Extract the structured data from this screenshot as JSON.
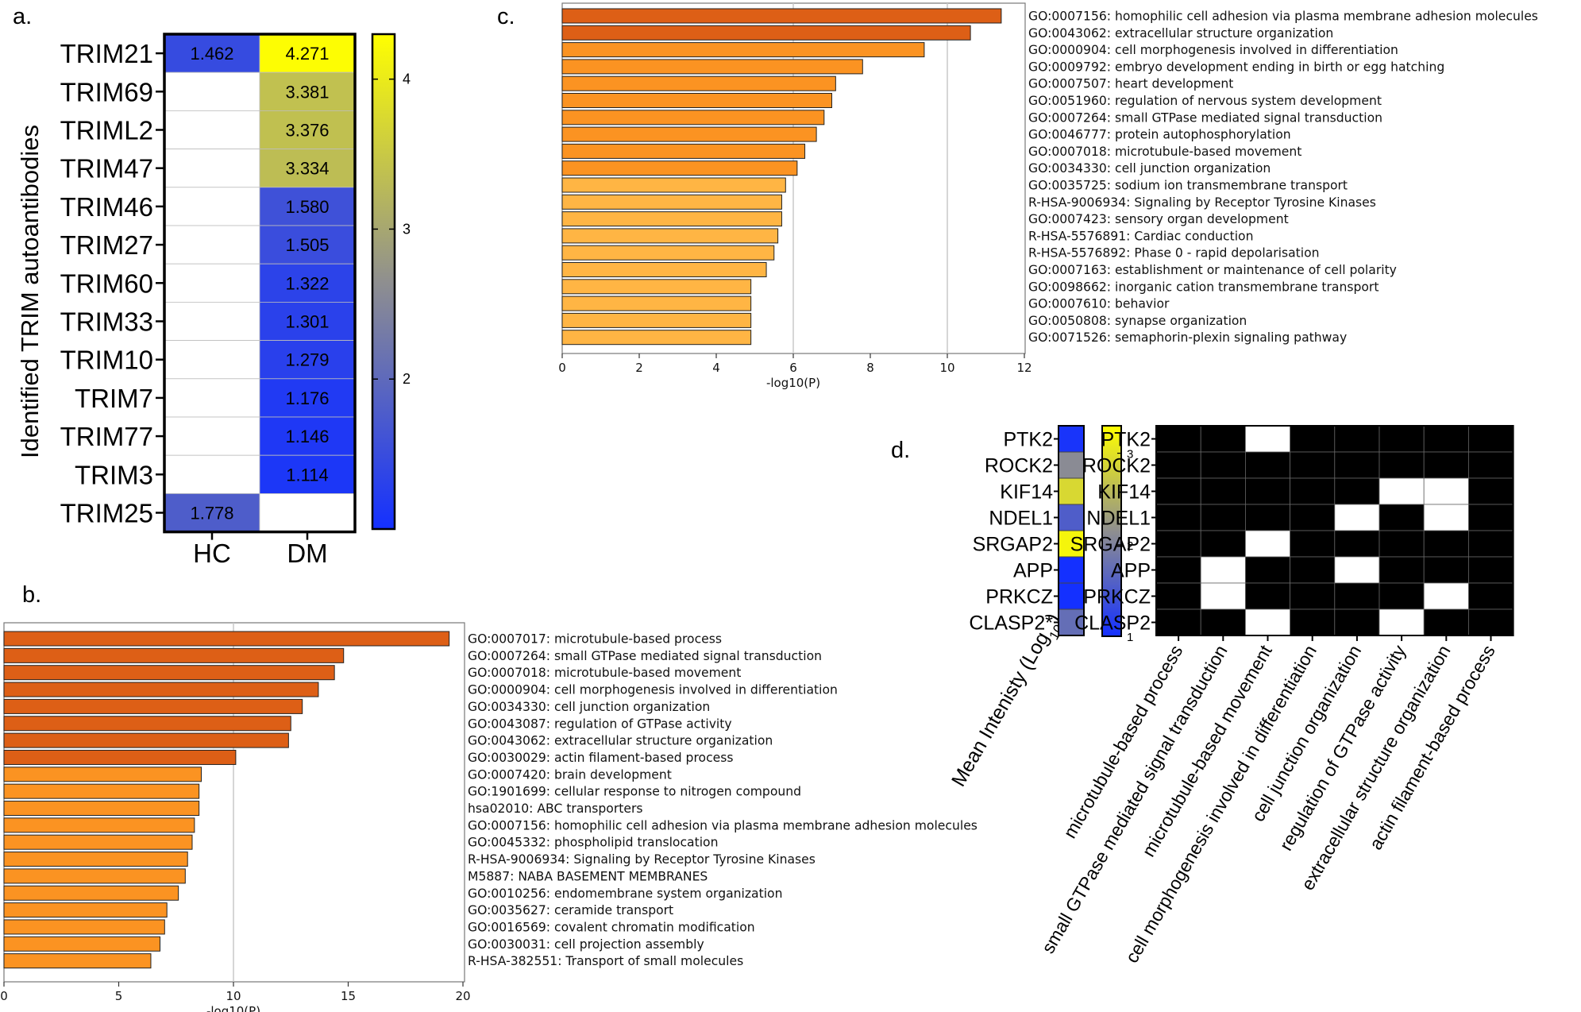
{
  "panel_labels": {
    "a": "a.",
    "b": "b.",
    "c": "c.",
    "d": "d."
  },
  "colors": {
    "cmap_low": "#1430ff",
    "cmap_mid": "#8f8f8f",
    "cmap_high": "#ffff00",
    "bar_dark": "#dd5f16",
    "bar_mid": "#fb9322",
    "bar_light": "#ffb544",
    "on_cell": "#000000",
    "off_cell": "#ffffff"
  },
  "chart_data": [
    {
      "panel": "a",
      "type": "heatmap",
      "rows": [
        "TRIM21",
        "TRIM69",
        "TRIML2",
        "TRIM47",
        "TRIM46",
        "TRIM27",
        "TRIM60",
        "TRIM33",
        "TRIM10",
        "TRIM7",
        "TRIM77",
        "TRIM3",
        "TRIM25"
      ],
      "columns": [
        "HC",
        "DM"
      ],
      "values": [
        [
          1.462,
          4.271
        ],
        [
          null,
          3.381
        ],
        [
          null,
          3.376
        ],
        [
          null,
          3.334
        ],
        [
          null,
          1.58
        ],
        [
          null,
          1.505
        ],
        [
          null,
          1.322
        ],
        [
          null,
          1.301
        ],
        [
          null,
          1.279
        ],
        [
          null,
          1.176
        ],
        [
          null,
          1.146
        ],
        [
          null,
          1.114
        ],
        [
          1.778,
          null
        ]
      ],
      "value_labels": [
        [
          "1.462",
          "4.271"
        ],
        [
          "",
          "3.381"
        ],
        [
          "",
          "3.376"
        ],
        [
          "",
          "3.334"
        ],
        [
          "",
          "1.580"
        ],
        [
          "",
          "1.505"
        ],
        [
          "",
          "1.322"
        ],
        [
          "",
          "1.301"
        ],
        [
          "",
          "1.279"
        ],
        [
          "",
          "1.176"
        ],
        [
          "",
          "1.146"
        ],
        [
          "",
          "1.114"
        ],
        [
          "1.778",
          ""
        ]
      ],
      "ylabel": "Identified TRIM autoantibodies",
      "colorbar": {
        "range": [
          1.0,
          4.3
        ],
        "ticks": [
          "2",
          "3",
          "4"
        ],
        "tick_values": [
          2,
          3,
          4
        ]
      }
    },
    {
      "panel": "b",
      "type": "bar",
      "orientation": "horizontal",
      "categories": [
        "GO:0007017: microtubule-based process",
        "GO:0007264: small GTPase mediated signal transduction",
        "GO:0007018: microtubule-based movement",
        "GO:0000904: cell morphogenesis involved in differentiation",
        "GO:0034330: cell junction organization",
        "GO:0043087: regulation of GTPase activity",
        "GO:0043062: extracellular structure organization",
        "GO:0030029: actin filament-based process",
        "GO:0007420: brain development",
        "GO:1901699: cellular response to nitrogen compound",
        "hsa02010: ABC transporters",
        "GO:0007156: homophilic cell adhesion via plasma membrane adhesion molecules",
        "GO:0045332: phospholipid translocation",
        "R-HSA-9006934: Signaling by Receptor Tyrosine Kinases",
        "M5887: NABA BASEMENT MEMBRANES",
        "GO:0010256: endomembrane system organization",
        "GO:0035627: ceramide transport",
        "GO:0016569: covalent chromatin modification",
        "GO:0030031: cell projection assembly",
        "R-HSA-382551: Transport of small molecules"
      ],
      "values": [
        19.4,
        14.8,
        14.4,
        13.7,
        13.0,
        12.5,
        12.4,
        10.1,
        8.6,
        8.5,
        8.5,
        8.3,
        8.2,
        8.0,
        7.9,
        7.6,
        7.1,
        7.0,
        6.8,
        6.4
      ],
      "xlabel": "-log10(P)",
      "xlim": [
        0,
        20
      ],
      "xticks": [
        "0",
        "5",
        "10",
        "15",
        "20"
      ],
      "grid_at": [
        10
      ]
    },
    {
      "panel": "c",
      "type": "bar",
      "orientation": "horizontal",
      "categories": [
        "GO:0007156: homophilic cell adhesion via plasma membrane adhesion molecules",
        "GO:0043062: extracellular structure organization",
        "GO:0000904: cell morphogenesis involved in differentiation",
        "GO:0009792: embryo development ending in birth or egg hatching",
        "GO:0007507: heart development",
        "GO:0051960: regulation of nervous system development",
        "GO:0007264: small GTPase mediated signal transduction",
        "GO:0046777: protein autophosphorylation",
        "GO:0007018: microtubule-based movement",
        "GO:0034330: cell junction organization",
        "GO:0035725: sodium ion transmembrane transport",
        "R-HSA-9006934: Signaling by Receptor Tyrosine Kinases",
        "GO:0007423: sensory organ development",
        "R-HSA-5576891: Cardiac conduction",
        "R-HSA-5576892: Phase 0 - rapid depolarisation",
        "GO:0007163: establishment or maintenance of cell polarity",
        "GO:0098662: inorganic cation transmembrane transport",
        "GO:0007610: behavior",
        "GO:0050808: synapse organization",
        "GO:0071526: semaphorin-plexin signaling pathway"
      ],
      "values": [
        11.4,
        10.6,
        9.4,
        7.8,
        7.1,
        7.0,
        6.8,
        6.6,
        6.3,
        6.1,
        5.8,
        5.7,
        5.7,
        5.6,
        5.5,
        5.3,
        4.9,
        4.9,
        4.9,
        4.9
      ],
      "xlabel": "-log10(P)",
      "xlim": [
        0,
        12
      ],
      "xticks": [
        "0",
        "2",
        "4",
        "6",
        "8",
        "10",
        "12"
      ],
      "grid_at": [
        6,
        10
      ]
    },
    {
      "panel": "d",
      "type": "heatmap",
      "genes": [
        "PTK2",
        "ROCK2",
        "KIF14",
        "NDEL1",
        "SRGAP2",
        "APP",
        "PRKCZ",
        "CLASP2*"
      ],
      "intensity_values": [
        1.05,
        2.1,
        2.9,
        1.55,
        3.2,
        1.0,
        1.0,
        1.75
      ],
      "intensity_label": "Mean Intenisty (Log10)",
      "colorbar": {
        "range": [
          1.0,
          3.3
        ],
        "ticks": [
          "1",
          "2",
          "3"
        ],
        "tick_values": [
          1,
          2,
          3
        ]
      },
      "matrix_rows": [
        "PTK2",
        "ROCK2",
        "KIF14",
        "NDEL1",
        "SRGAP2",
        "APP",
        "PRKCZ",
        "CLASP2"
      ],
      "matrix_columns": [
        "microtubule-based process",
        "small GTPase mediated signal transduction",
        "microtubule-based movement",
        "cell morphogenesis involved in differentiation",
        "cell junction organization",
        "regulation of GTPase activity",
        "extracellular structure organization",
        "actin filament-based process"
      ],
      "matrix": [
        [
          1,
          1,
          0,
          1,
          1,
          1,
          1,
          1
        ],
        [
          1,
          1,
          1,
          1,
          1,
          1,
          1,
          1
        ],
        [
          1,
          1,
          1,
          1,
          1,
          0,
          0,
          1
        ],
        [
          1,
          1,
          1,
          1,
          0,
          1,
          0,
          1
        ],
        [
          1,
          1,
          0,
          1,
          1,
          1,
          1,
          1
        ],
        [
          1,
          0,
          1,
          1,
          0,
          1,
          1,
          1
        ],
        [
          1,
          0,
          1,
          1,
          1,
          1,
          0,
          1
        ],
        [
          1,
          1,
          0,
          1,
          1,
          0,
          1,
          1
        ]
      ]
    }
  ]
}
